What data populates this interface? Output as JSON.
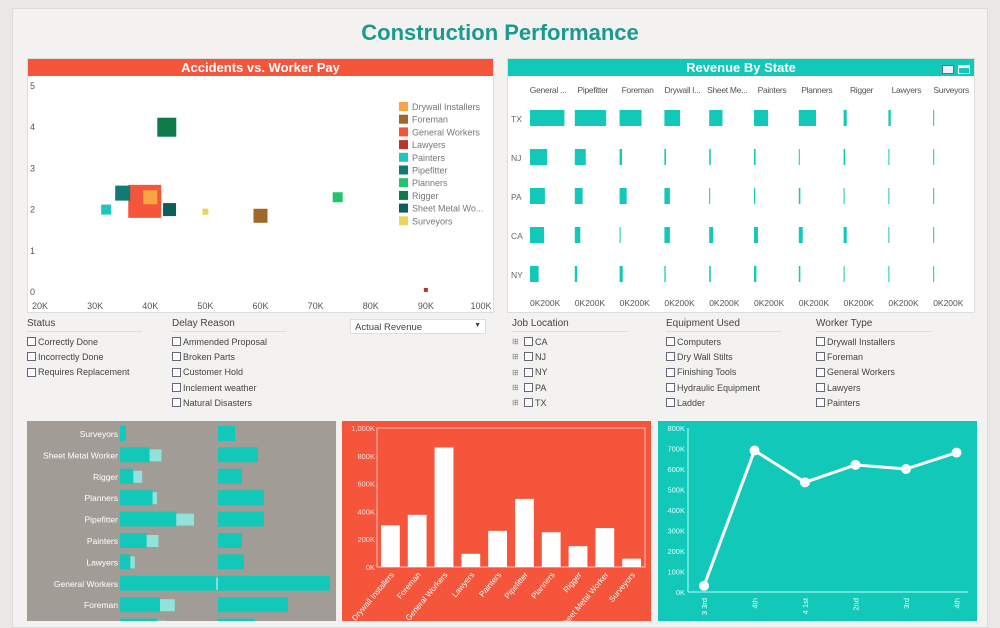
{
  "title": "Construction Performance",
  "colors": {
    "red": "#f5553a",
    "teal": "#12c8b8",
    "gray": "#a19c96",
    "title": "#1a9a8c"
  },
  "scatter": {
    "title": "Accidents vs. Worker Pay",
    "type": "scatter",
    "xlim": [
      20,
      100
    ],
    "ylim": [
      0,
      5
    ],
    "xticks": [
      "20K",
      "30K",
      "40K",
      "50K",
      "60K",
      "70K",
      "80K",
      "90K",
      "100K"
    ],
    "yticks": [
      "0",
      "1",
      "2",
      "3",
      "4",
      "5"
    ],
    "legend_position": "right",
    "series": [
      {
        "name": "Drywall Installers",
        "color": "#f4a640",
        "x": 40,
        "y": 2.3,
        "size": 14
      },
      {
        "name": "Foreman",
        "color": "#a0672a",
        "x": 60,
        "y": 1.85,
        "size": 14
      },
      {
        "name": "General Workers",
        "color": "#f5553a",
        "x": 39,
        "y": 2.2,
        "size": 33
      },
      {
        "name": "Lawyers",
        "color": "#b5382a",
        "x": 90,
        "y": 0.05,
        "size": 4
      },
      {
        "name": "Painters",
        "color": "#1fc6bf",
        "x": 32,
        "y": 2.0,
        "size": 10
      },
      {
        "name": "Pipefitter",
        "color": "#127a70",
        "x": 35,
        "y": 2.4,
        "size": 15
      },
      {
        "name": "Planners",
        "color": "#21c46c",
        "x": 74,
        "y": 2.3,
        "size": 10
      },
      {
        "name": "Rigger",
        "color": "#0f7a4a",
        "x": 43,
        "y": 4.0,
        "size": 19
      },
      {
        "name": "Sheet Metal Wo...",
        "color": "#0c5e5a",
        "x": 43.5,
        "y": 2.0,
        "size": 13
      },
      {
        "name": "Surveyors",
        "color": "#e9d55a",
        "x": 50,
        "y": 1.95,
        "size": 6
      }
    ]
  },
  "revenue": {
    "title": "Revenue By State",
    "type": "bar",
    "xlim": [
      0,
      230
    ],
    "tick_label": "0K200K",
    "columns": [
      "General ...",
      "Pipefitter",
      "Foreman",
      "Drywall I...",
      "Sheet Me...",
      "Painters",
      "Planners",
      "Rigger",
      "Lawyers",
      "Surveyors"
    ],
    "rows": [
      "TX",
      "NJ",
      "PA",
      "CA",
      "NY"
    ],
    "values": [
      [
        220,
        200,
        140,
        100,
        85,
        90,
        110,
        20,
        15,
        2
      ],
      [
        110,
        70,
        15,
        10,
        10,
        10,
        6,
        10,
        4,
        4
      ],
      [
        95,
        50,
        45,
        35,
        5,
        8,
        10,
        3,
        3,
        3
      ],
      [
        90,
        35,
        5,
        35,
        25,
        25,
        25,
        20,
        3,
        2
      ],
      [
        55,
        15,
        20,
        8,
        10,
        15,
        10,
        4,
        4,
        1
      ]
    ]
  },
  "filters": [
    {
      "title": "Status",
      "expand": false,
      "options": [
        "Correctly Done",
        "Incorrectly Done",
        "Requires Replacement"
      ]
    },
    {
      "title": "Delay Reason",
      "expand": false,
      "options": [
        "Ammended Proposal",
        "Broken Parts",
        "Customer Hold",
        "Inclement weather",
        "Natural Disasters"
      ]
    },
    {
      "title": "Job Location",
      "expand": true,
      "options": [
        "CA",
        "NJ",
        "NY",
        "PA",
        "TX"
      ]
    },
    {
      "title": "Equipment Used",
      "expand": false,
      "options": [
        "Computers",
        "Dry Wall Stilts",
        "Finishing Tools",
        "Hydraulic Equipment",
        "Ladder"
      ]
    },
    {
      "title": "Worker Type",
      "expand": false,
      "options": [
        "Drywall Installers",
        "Foreman",
        "General Workers",
        "Lawyers",
        "Painters"
      ]
    }
  ],
  "dropdown": {
    "value": "Actual Revenue",
    "arrow": "▼"
  },
  "hbar": {
    "type": "bar",
    "categories": [
      "Surveyors",
      "Sheet Metal Worker",
      "Rigger",
      "Planners",
      "Pipefitter",
      "Painters",
      "Lawyers",
      "General Workers",
      "Foreman",
      ""
    ],
    "primary": [
      4,
      20,
      9,
      22,
      38,
      18,
      7,
      65,
      27,
      25
    ],
    "secondary": [
      0,
      8,
      6,
      3,
      12,
      8,
      3,
      20,
      10,
      6
    ],
    "right": [
      17,
      40,
      24,
      46,
      46,
      24,
      26,
      112,
      70,
      37
    ]
  },
  "column": {
    "type": "bar",
    "ylim": [
      0,
      1000
    ],
    "yticks": [
      "0K",
      "200K",
      "400K",
      "600K",
      "800K",
      "1,000K"
    ],
    "categories": [
      "Drywall Installers",
      "Foreman",
      "General Workers",
      "Lawyers",
      "Painters",
      "Pipefitter",
      "Planners",
      "Rigger",
      "Sheet Metal Worker",
      "Surveyors"
    ],
    "values": [
      300,
      375,
      860,
      95,
      260,
      490,
      250,
      150,
      280,
      60
    ]
  },
  "line": {
    "type": "line",
    "ylim": [
      0,
      800
    ],
    "yticks": [
      "0K",
      "100K",
      "200K",
      "300K",
      "400K",
      "500K",
      "600K",
      "700K",
      "800K"
    ],
    "categories": [
      "3 3rd",
      "4th",
      "4 1st",
      "2nd",
      "3rd",
      "4th"
    ],
    "values": [
      30,
      690,
      535,
      620,
      600,
      680
    ]
  }
}
